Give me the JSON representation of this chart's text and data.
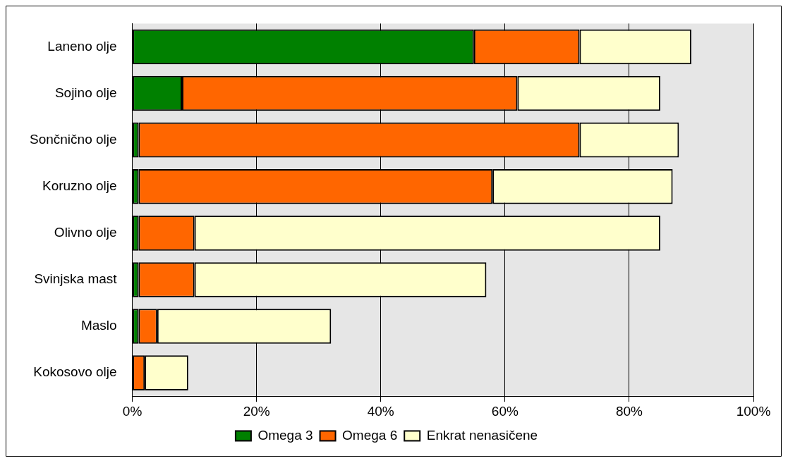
{
  "chart_data": {
    "type": "bar",
    "orientation": "horizontal",
    "stacked": true,
    "categories": [
      "Laneno olje",
      "Sojino olje",
      "Sončnično olje",
      "Koruzno olje",
      "Olivno olje",
      "Svinjska mast",
      "Maslo",
      "Kokosovo olje"
    ],
    "series": [
      {
        "name": "Omega 3",
        "color": "#008000",
        "values": [
          55,
          8,
          1,
          1,
          1,
          1,
          1,
          0
        ]
      },
      {
        "name": "Omega 6",
        "color": "#ff6600",
        "values": [
          17,
          54,
          71,
          57,
          9,
          9,
          3,
          2
        ]
      },
      {
        "name": "Enkrat nenasičene",
        "color": "#ffffcc",
        "values": [
          18,
          23,
          16,
          29,
          75,
          47,
          28,
          7
        ]
      }
    ],
    "xlim": [
      0,
      100
    ],
    "xticks": [
      {
        "value": 0,
        "label": "0%"
      },
      {
        "value": 20,
        "label": "20%"
      },
      {
        "value": 40,
        "label": "40%"
      },
      {
        "value": 60,
        "label": "60%"
      },
      {
        "value": 80,
        "label": "80%"
      },
      {
        "value": 100,
        "label": "100%"
      }
    ],
    "grid": "x",
    "legend": "bottom"
  }
}
